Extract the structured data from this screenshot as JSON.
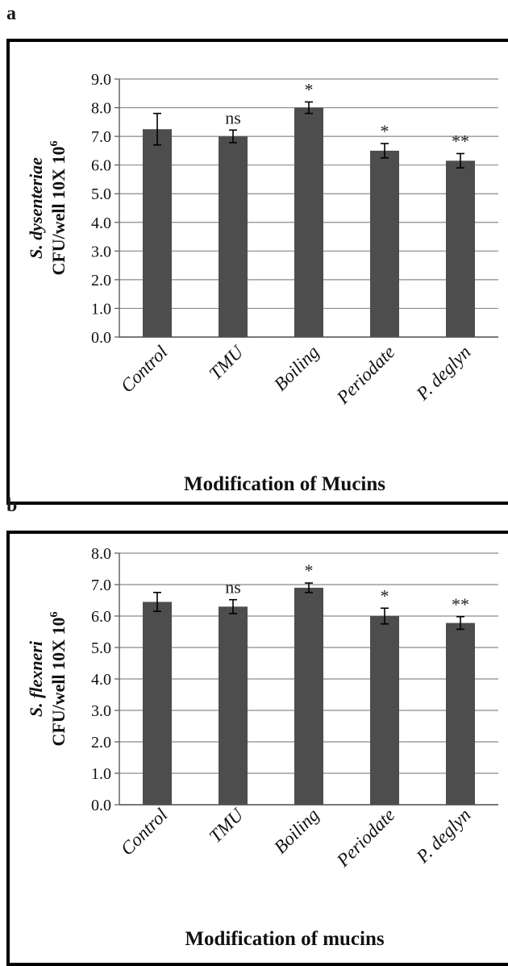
{
  "panels": [
    {
      "letter": "a"
    },
    {
      "letter": "b"
    }
  ],
  "chart_data": [
    {
      "type": "bar",
      "panel": "a",
      "categories": [
        "Control",
        "TMU",
        "Boiling",
        "Periodate",
        "P. deglyn"
      ],
      "values": [
        7.25,
        7.0,
        8.0,
        6.5,
        6.15
      ],
      "error": [
        0.55,
        0.22,
        0.2,
        0.25,
        0.25
      ],
      "significance": [
        "",
        "ns",
        "*",
        "*",
        "**"
      ],
      "ylabel_species": "S. dysenteriae",
      "ylabel_unit": "CFU/well 10X 10",
      "ylabel_exponent": "6",
      "xlabel": "Modification of Mucins",
      "ylim": [
        0,
        9
      ],
      "ytick_step": 1,
      "yticks": [
        "0.0",
        "1.0",
        "2.0",
        "3.0",
        "4.0",
        "5.0",
        "6.0",
        "7.0",
        "8.0",
        "9.0"
      ],
      "grid": true,
      "bar_color": "#4d4d4d"
    },
    {
      "type": "bar",
      "panel": "b",
      "categories": [
        "Control",
        "TMU",
        "Boiling",
        "Periodate",
        "P. deglyn"
      ],
      "values": [
        6.45,
        6.3,
        6.9,
        6.0,
        5.78
      ],
      "error": [
        0.3,
        0.22,
        0.15,
        0.25,
        0.2
      ],
      "significance": [
        "",
        "ns",
        "*",
        "*",
        "**"
      ],
      "ylabel_species": "S. flexneri",
      "ylabel_unit": "CFU/well 10X 10",
      "ylabel_exponent": "6",
      "xlabel": "Modification of mucins",
      "ylim": [
        0,
        8
      ],
      "ytick_step": 1,
      "yticks": [
        "0.0",
        "1.0",
        "2.0",
        "3.0",
        "4.0",
        "5.0",
        "6.0",
        "7.0",
        "8.0"
      ],
      "grid": true,
      "bar_color": "#4d4d4d"
    }
  ]
}
